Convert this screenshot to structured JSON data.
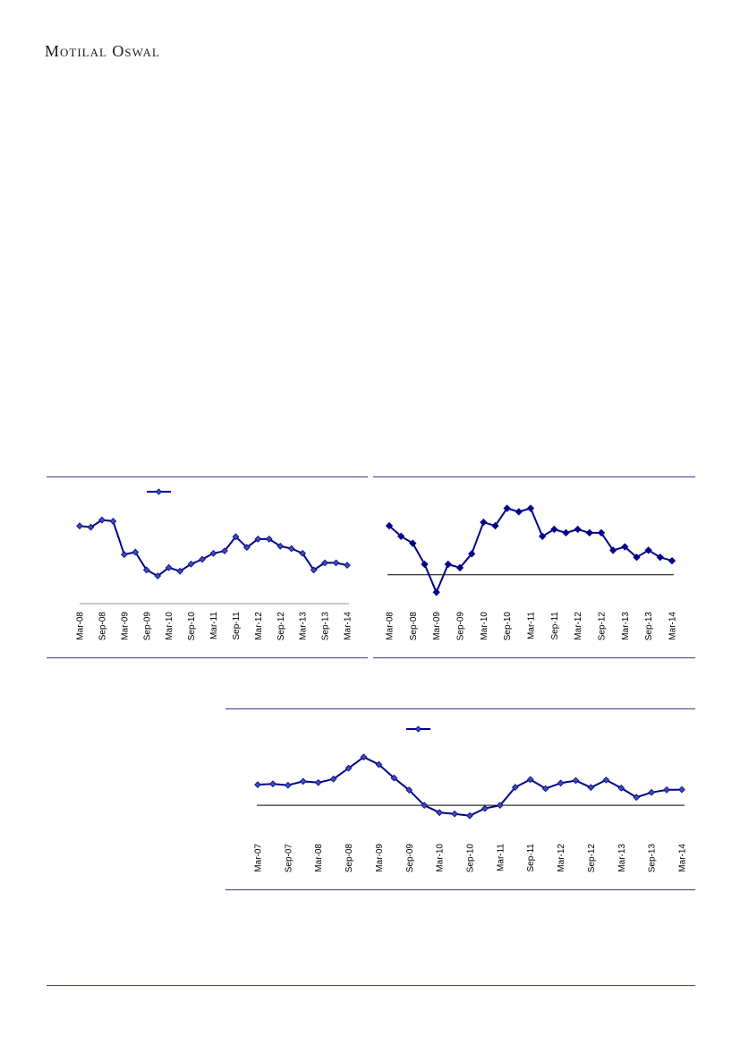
{
  "header": {
    "brand": "Motilal Oswal"
  },
  "chart_data": [
    {
      "type": "line",
      "categories": [
        "Mar-08",
        "Jun-08",
        "Sep-08",
        "Dec-08",
        "Mar-09",
        "Jun-09",
        "Sep-09",
        "Dec-09",
        "Mar-10",
        "Jun-10",
        "Sep-10",
        "Dec-10",
        "Mar-11",
        "Jun-11",
        "Sep-11",
        "Dec-11",
        "Mar-12",
        "Jun-12",
        "Sep-12",
        "Dec-12",
        "Mar-13",
        "Jun-13",
        "Sep-13",
        "Dec-13",
        "Mar-14"
      ],
      "tick_labels": [
        "Mar-08",
        "Sep-08",
        "Mar-09",
        "Sep-09",
        "Mar-10",
        "Sep-10",
        "Mar-11",
        "Sep-11",
        "Mar-12",
        "Sep-12",
        "Mar-13",
        "Sep-13",
        "Mar-14"
      ],
      "series": [
        {
          "values": [
            69,
            68,
            74,
            73,
            45,
            47,
            32,
            27,
            34,
            31,
            37,
            41,
            46,
            48,
            60,
            51,
            58,
            58,
            52,
            50,
            46,
            32,
            38,
            38,
            36
          ]
        }
      ],
      "ylim": [
        15,
        85
      ],
      "legend": "top-center",
      "colors": {
        "line": "#00008b",
        "marker": "#1f3a93"
      }
    },
    {
      "type": "line",
      "categories": [
        "Mar-08",
        "Jun-08",
        "Sep-08",
        "Dec-08",
        "Mar-09",
        "Jun-09",
        "Sep-09",
        "Dec-09",
        "Mar-10",
        "Jun-10",
        "Sep-10",
        "Dec-10",
        "Mar-11",
        "Jun-11",
        "Sep-11",
        "Dec-11",
        "Mar-12",
        "Jun-12",
        "Sep-12",
        "Dec-12",
        "Mar-13",
        "Jun-13",
        "Sep-13",
        "Dec-13",
        "Mar-14"
      ],
      "tick_labels": [
        "Mar-08",
        "Sep-08",
        "Mar-09",
        "Sep-09",
        "Mar-10",
        "Sep-10",
        "Mar-11",
        "Sep-11",
        "Mar-12",
        "Sep-12",
        "Mar-13",
        "Sep-13",
        "Mar-14"
      ],
      "series": [
        {
          "values": [
            14,
            11,
            9,
            3,
            -5,
            3,
            2,
            6,
            15,
            14,
            19,
            18,
            19,
            11,
            13,
            12,
            13,
            12,
            12,
            7,
            8,
            5,
            7,
            5,
            4
          ]
        }
      ],
      "ylim": [
        -8,
        24
      ],
      "zero_line": 0,
      "colors": {
        "line": "#00008b",
        "marker": "#00008b"
      }
    },
    {
      "type": "line",
      "categories": [
        "Mar-07",
        "Jun-07",
        "Sep-07",
        "Dec-07",
        "Mar-08",
        "Jun-08",
        "Sep-08",
        "Dec-08",
        "Mar-09",
        "Jun-09",
        "Sep-09",
        "Dec-09",
        "Mar-10",
        "Jun-10",
        "Sep-10",
        "Dec-10",
        "Mar-11",
        "Jun-11",
        "Sep-11",
        "Dec-11",
        "Mar-12",
        "Jun-12",
        "Sep-12",
        "Dec-12",
        "Mar-13",
        "Jun-13",
        "Sep-13",
        "Dec-13",
        "Mar-14"
      ],
      "tick_labels": [
        "Mar-07",
        "Sep-07",
        "Mar-08",
        "Sep-08",
        "Mar-09",
        "Sep-09",
        "Mar-10",
        "Sep-10",
        "Mar-11",
        "Sep-11",
        "Mar-12",
        "Sep-12",
        "Mar-13",
        "Sep-13",
        "Mar-14"
      ],
      "series": [
        {
          "values": [
            8.0,
            8.3,
            7.8,
            9.3,
            8.8,
            10.2,
            14.4,
            18.7,
            15.8,
            10.6,
            5.9,
            0.0,
            -2.8,
            -3.3,
            -4.0,
            -1.2,
            0.0,
            7.0,
            10.0,
            6.5,
            8.6,
            9.6,
            6.9,
            9.8,
            6.7,
            3.1,
            5.0,
            6.0,
            6.1
          ]
        }
      ],
      "ylim": [
        -10,
        24
      ],
      "zero_line": 0,
      "legend": "top-center",
      "colors": {
        "line": "#00008b",
        "marker": "#1f3a93"
      }
    }
  ]
}
